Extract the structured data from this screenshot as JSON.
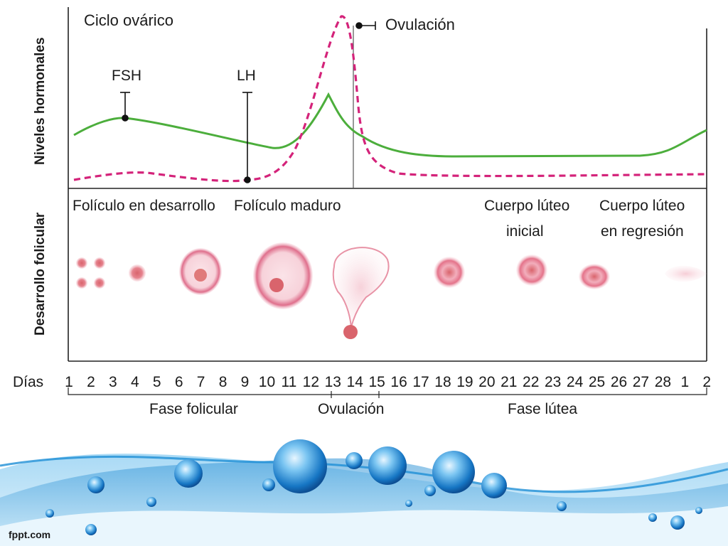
{
  "title": "Ciclo ovárico",
  "ylabel_top": "Niveles hormonales",
  "ylabel_bottom": "Desarrollo folicular",
  "hormones": {
    "fsh_label": "FSH",
    "lh_label": "LH",
    "ovulation_label": "Ovulación",
    "fsh_color": "#4cae3c",
    "lh_color": "#d4237a"
  },
  "follicle_labels": {
    "developing": "Folículo en desarrollo",
    "mature": "Folículo maduro",
    "early_corpus_line1": "Cuerpo lúteo",
    "early_corpus_line2": "inicial",
    "regressing_corpus_line1": "Cuerpo lúteo",
    "regressing_corpus_line2": "en regresión"
  },
  "days_label": "Días",
  "days": [
    "1",
    "2",
    "3",
    "4",
    "5",
    "6",
    "7",
    "8",
    "9",
    "10",
    "11",
    "12",
    "13",
    "14",
    "15",
    "16",
    "17",
    "18",
    "19",
    "20",
    "21",
    "22",
    "23",
    "24",
    "25",
    "26",
    "27",
    "28",
    "1",
    "2"
  ],
  "phases": {
    "follicular": "Fase folicular",
    "ovulation": "Ovulación",
    "luteal": "Fase lútea"
  },
  "footer": "fppt.com",
  "colors": {
    "follicle_pink": "#e8879f",
    "water_blue": "#1e8fd6"
  }
}
